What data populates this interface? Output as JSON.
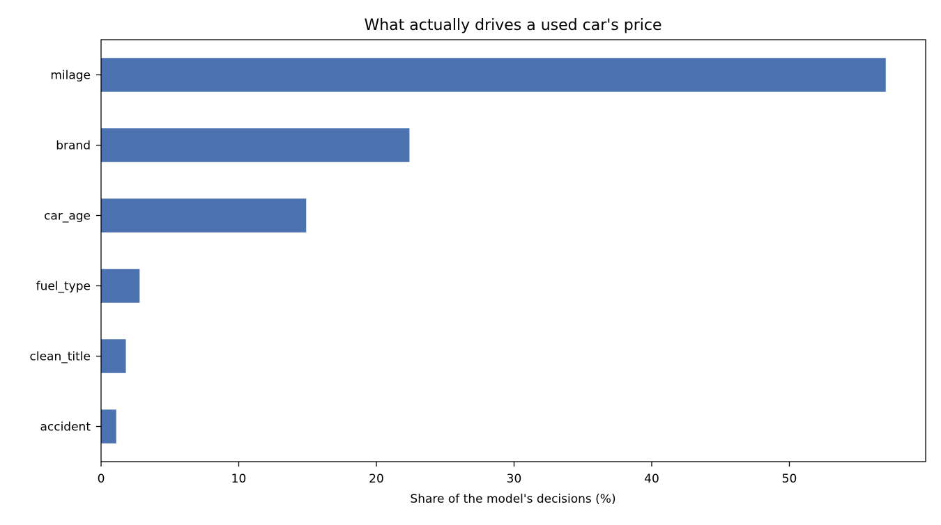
{
  "chart_data": {
    "type": "bar",
    "orientation": "horizontal",
    "title": "What actually drives a used car's price",
    "xlabel": "Share of the model's decisions (%)",
    "ylabel": "",
    "categories": [
      "milage",
      "brand",
      "car_age",
      "fuel_type",
      "clean_title",
      "accident"
    ],
    "values": [
      57.0,
      22.4,
      14.9,
      2.8,
      1.8,
      1.1
    ],
    "xlim": [
      0,
      60
    ],
    "xticks": [
      0,
      10,
      20,
      30,
      40,
      50
    ],
    "xtick_labels": [
      "0",
      "10",
      "20",
      "30",
      "40",
      "50"
    ],
    "bar_color": "#4c72b0",
    "grid": false,
    "legend": "none"
  }
}
